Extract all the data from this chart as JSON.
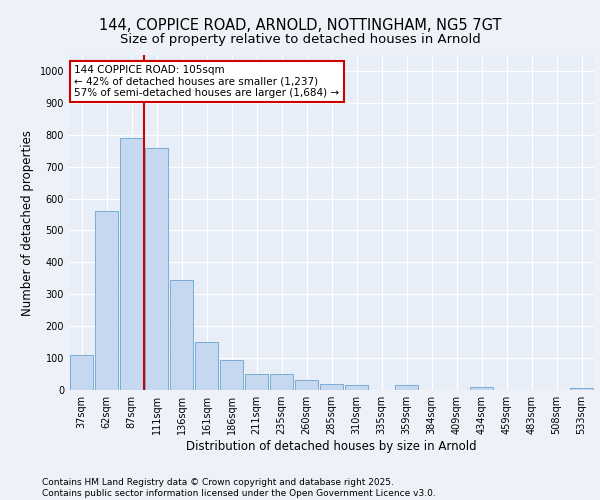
{
  "title_line1": "144, COPPICE ROAD, ARNOLD, NOTTINGHAM, NG5 7GT",
  "title_line2": "Size of property relative to detached houses in Arnold",
  "xlabel": "Distribution of detached houses by size in Arnold",
  "ylabel": "Number of detached properties",
  "categories": [
    "37sqm",
    "62sqm",
    "87sqm",
    "111sqm",
    "136sqm",
    "161sqm",
    "186sqm",
    "211sqm",
    "235sqm",
    "260sqm",
    "285sqm",
    "310sqm",
    "335sqm",
    "359sqm",
    "384sqm",
    "409sqm",
    "434sqm",
    "459sqm",
    "483sqm",
    "508sqm",
    "533sqm"
  ],
  "values": [
    110,
    560,
    790,
    760,
    345,
    150,
    95,
    50,
    50,
    30,
    20,
    15,
    0,
    15,
    0,
    0,
    10,
    0,
    0,
    0,
    5
  ],
  "bar_color": "#c5d8f0",
  "bar_edge_color": "#7aadd4",
  "annotation_text": "144 COPPICE ROAD: 105sqm\n← 42% of detached houses are smaller (1,237)\n57% of semi-detached houses are larger (1,684) →",
  "annotation_box_color": "#ffffff",
  "annotation_box_edge": "#cc0000",
  "vline_color": "#cc0000",
  "ylim": [
    0,
    1050
  ],
  "yticks": [
    0,
    100,
    200,
    300,
    400,
    500,
    600,
    700,
    800,
    900,
    1000
  ],
  "background_color": "#e8eef8",
  "plot_bg_color": "#e8eef8",
  "fig_bg_color": "#eef2f8",
  "grid_color": "#ffffff",
  "footer_text": "Contains HM Land Registry data © Crown copyright and database right 2025.\nContains public sector information licensed under the Open Government Licence v3.0.",
  "title_fontsize": 10.5,
  "subtitle_fontsize": 9.5,
  "axis_label_fontsize": 8.5,
  "tick_fontsize": 7,
  "annotation_fontsize": 7.5,
  "footer_fontsize": 6.5
}
